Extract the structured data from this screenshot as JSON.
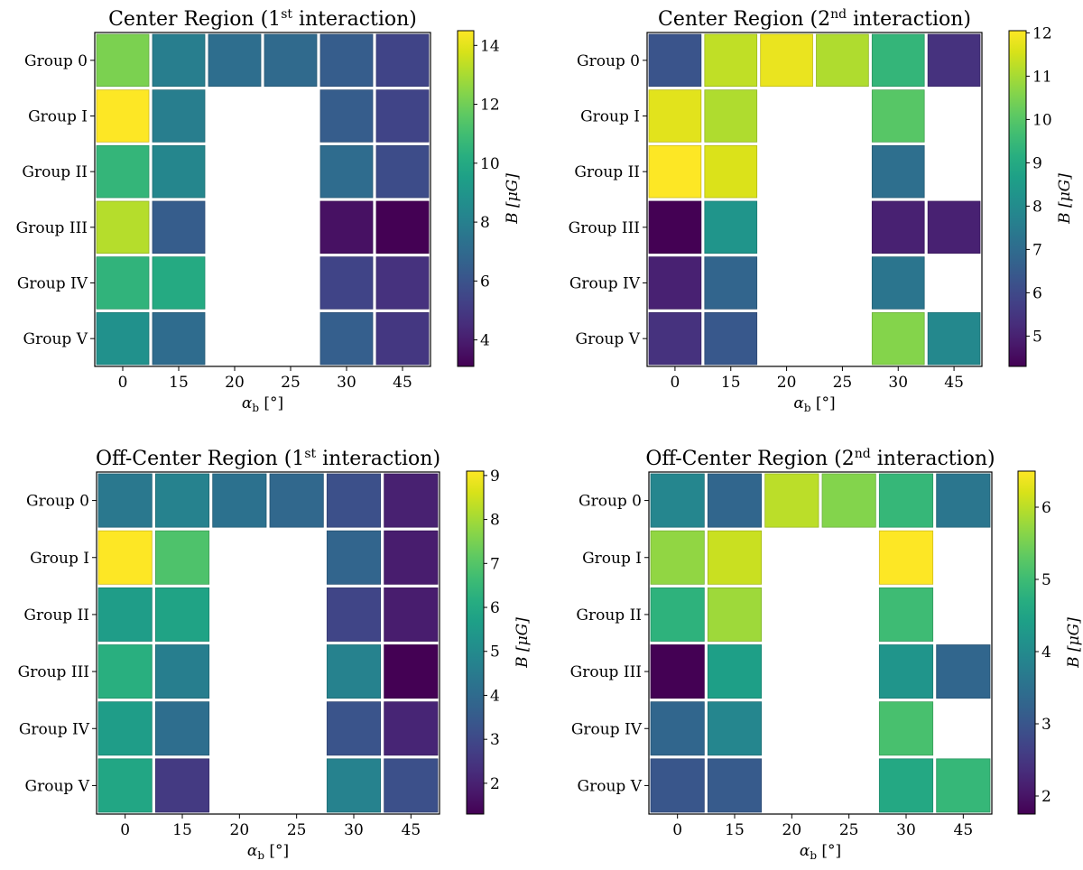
{
  "chart_data": [
    {
      "type": "heatmap",
      "title": "Center Region (1",
      "title_sup": "st",
      "title_tail": " interaction)",
      "xlabel": "α",
      "xlabel_sub": "b",
      "xlabel_unit": " [°]",
      "colorbar_label": "B [μG]",
      "colormap": "viridis",
      "x_categories": [
        "0",
        "15",
        "20",
        "25",
        "30",
        "45"
      ],
      "y_categories": [
        "Group 0",
        "Group I",
        "Group II",
        "Group III",
        "Group IV",
        "Group V"
      ],
      "vmin": 3.1,
      "vmax": 14.5,
      "colorbar_ticks": [
        4,
        6,
        8,
        10,
        12,
        14
      ],
      "values": [
        [
          12.2,
          7.9,
          7.2,
          7.0,
          6.4,
          5.4
        ],
        [
          14.5,
          7.9,
          null,
          null,
          6.4,
          5.4
        ],
        [
          10.6,
          8.3,
          null,
          null,
          7.1,
          5.7
        ],
        [
          13.2,
          6.4,
          null,
          null,
          3.6,
          3.1
        ],
        [
          10.5,
          10.0,
          null,
          null,
          5.4,
          4.7
        ],
        [
          8.8,
          7.1,
          null,
          null,
          6.5,
          4.9
        ]
      ]
    },
    {
      "type": "heatmap",
      "title": "Center Region (2",
      "title_sup": "nd",
      "title_tail": " interaction)",
      "xlabel": "α",
      "xlabel_sub": "b",
      "xlabel_unit": " [°]",
      "colorbar_label": "B [μG]",
      "colormap": "viridis",
      "x_categories": [
        "0",
        "15",
        "20",
        "25",
        "30",
        "45"
      ],
      "y_categories": [
        "Group 0",
        "Group I",
        "Group II",
        "Group III",
        "Group IV",
        "Group V"
      ],
      "vmin": 4.3,
      "vmax": 12.05,
      "colorbar_ticks": [
        5,
        6,
        7,
        8,
        9,
        10,
        11,
        12
      ],
      "values": [
        [
          6.3,
          11.3,
          11.8,
          11.1,
          9.4,
          5.4
        ],
        [
          11.7,
          11.1,
          null,
          null,
          10.0,
          null
        ],
        [
          12.05,
          11.6,
          null,
          null,
          7.1,
          null
        ],
        [
          4.3,
          8.3,
          null,
          null,
          5.0,
          5.0
        ],
        [
          5.0,
          6.8,
          null,
          null,
          7.3,
          null
        ],
        [
          5.4,
          6.4,
          null,
          null,
          10.6,
          7.9
        ]
      ]
    },
    {
      "type": "heatmap",
      "title": "Off-Center Region (1",
      "title_sup": "st",
      "title_tail": " interaction)",
      "xlabel": "α",
      "xlabel_sub": "b",
      "xlabel_unit": " [°]",
      "colorbar_label": "B [μG]",
      "colormap": "viridis",
      "x_categories": [
        "0",
        "15",
        "20",
        "25",
        "30",
        "45"
      ],
      "y_categories": [
        "Group 0",
        "Group I",
        "Group II",
        "Group III",
        "Group IV",
        "Group V"
      ],
      "vmin": 1.3,
      "vmax": 9.1,
      "colorbar_ticks": [
        2,
        3,
        4,
        5,
        6,
        7,
        8,
        9
      ],
      "values": [
        [
          4.4,
          4.7,
          4.2,
          3.9,
          3.2,
          2.0
        ],
        [
          9.1,
          6.9,
          null,
          null,
          3.8,
          1.9
        ],
        [
          5.6,
          5.8,
          null,
          null,
          2.9,
          1.9
        ],
        [
          6.2,
          4.6,
          null,
          null,
          4.7,
          1.3
        ],
        [
          5.6,
          4.1,
          null,
          null,
          3.3,
          2.1
        ],
        [
          5.9,
          2.6,
          null,
          null,
          4.7,
          3.2
        ]
      ]
    },
    {
      "type": "heatmap",
      "title": "Off-Center Region (2",
      "title_sup": "nd",
      "title_tail": " interaction)",
      "xlabel": "α",
      "xlabel_sub": "b",
      "xlabel_unit": " [°]",
      "colorbar_label": "B [μG]",
      "colormap": "viridis",
      "x_categories": [
        "0",
        "15",
        "20",
        "25",
        "30",
        "45"
      ],
      "y_categories": [
        "Group 0",
        "Group I",
        "Group II",
        "Group III",
        "Group IV",
        "Group V"
      ],
      "vmin": 1.75,
      "vmax": 6.5,
      "colorbar_ticks": [
        2,
        3,
        4,
        5,
        6
      ],
      "values": [
        [
          3.9,
          3.3,
          6.0,
          5.6,
          4.9,
          3.6
        ],
        [
          5.7,
          6.1,
          null,
          null,
          6.5,
          null
        ],
        [
          4.8,
          5.8,
          null,
          null,
          5.0,
          null
        ],
        [
          1.75,
          4.4,
          null,
          null,
          4.2,
          3.3
        ],
        [
          3.3,
          3.9,
          null,
          null,
          5.1,
          null
        ],
        [
          3.0,
          3.1,
          null,
          null,
          4.6,
          4.9
        ]
      ]
    }
  ]
}
